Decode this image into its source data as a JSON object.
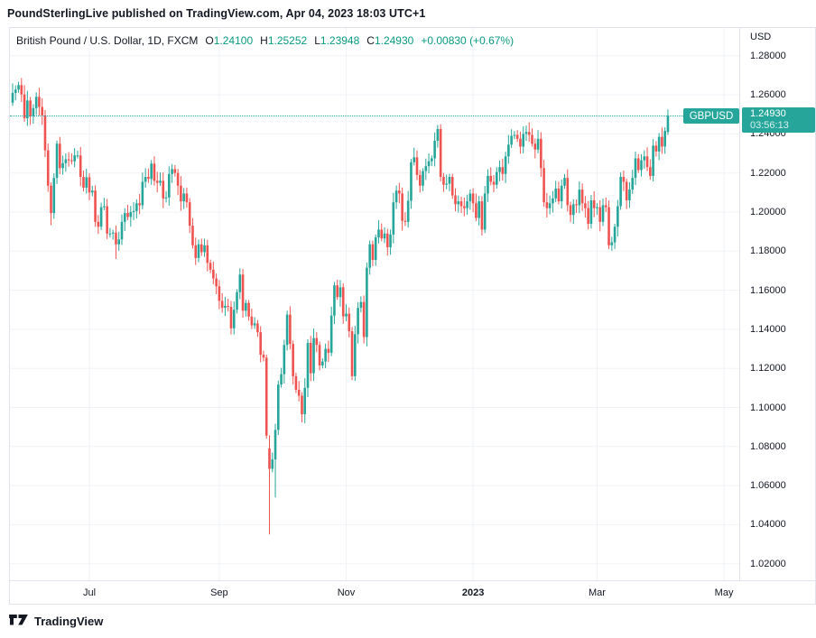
{
  "header": {
    "text": "PoundSterlingLive published on TradingView.com, Apr 04, 2023 18:03 UTC+1"
  },
  "legend": {
    "symbol_title": "British Pound / U.S. Dollar, 1D, FXCM",
    "open_label": "O",
    "open_value": "1.24100",
    "high_label": "H",
    "high_value": "1.25252",
    "low_label": "L",
    "low_value": "1.23948",
    "close_label": "C",
    "close_value": "1.24930",
    "change": "+0.00830 (+0.67%)"
  },
  "price_axis": {
    "currency": "USD",
    "badge": {
      "price": "1.24930",
      "countdown": "03:56:13"
    }
  },
  "price_line": {
    "label": "GBPUSD",
    "price": "1.24930"
  },
  "watermark": {
    "brand": "TradingView"
  },
  "colors": {
    "up": "#26a69a",
    "down": "#ef5350",
    "accent_text": "#089981",
    "badge_bg": "#26a69a",
    "grid": "#f0f2f6",
    "border": "#e0e3eb",
    "text": "#131722"
  },
  "chart_data": {
    "type": "candlestick",
    "title": "British Pound / U.S. Dollar, 1D, FXCM",
    "symbol": "GBPUSD",
    "interval": "1D",
    "exchange": "FXCM",
    "grid": true,
    "ylim": [
      1.02,
      1.28
    ],
    "y_ticks": [
      "1.28000",
      "1.26000",
      "1.24000",
      "1.22000",
      "1.20000",
      "1.18000",
      "1.16000",
      "1.14000",
      "1.12000",
      "1.10000",
      "1.08000",
      "1.06000",
      "1.04000",
      "1.02000"
    ],
    "x_ticks": [
      {
        "label": "Jul",
        "candle_index": 26,
        "bold": false
      },
      {
        "label": "Sep",
        "candle_index": 70,
        "bold": false
      },
      {
        "label": "Nov",
        "candle_index": 113,
        "bold": false
      },
      {
        "label": "2023",
        "candle_index": 156,
        "bold": true
      },
      {
        "label": "Mar",
        "candle_index": 198,
        "bold": false
      },
      {
        "label": "May",
        "candle_index": 241,
        "bold": false
      }
    ],
    "current_price": 1.2493,
    "first_open": 1.256,
    "closes": [
      1.261,
      1.2627,
      1.265,
      1.2602,
      1.248,
      1.2571,
      1.249,
      1.2532,
      1.259,
      1.2538,
      1.2495,
      1.2316,
      1.2135,
      1.1995,
      1.2175,
      1.235,
      1.2225,
      1.225,
      1.227,
      1.2265,
      1.226,
      1.229,
      1.229,
      1.218,
      1.2125,
      1.2178,
      1.21,
      1.211,
      1.195,
      1.1925,
      1.2025,
      1.203,
      1.189,
      1.189,
      1.1895,
      1.1835,
      1.186,
      1.195,
      1.1995,
      1.1975,
      1.2,
      1.2005,
      1.2045,
      1.2035,
      1.2155,
      1.218,
      1.217,
      1.2248,
      1.216,
      1.215,
      1.216,
      1.207,
      1.2075,
      1.2195,
      1.222,
      1.22,
      1.2135,
      1.2055,
      1.2095,
      1.205,
      1.193,
      1.183,
      1.1765,
      1.1835,
      1.1795,
      1.183,
      1.174,
      1.1705,
      1.166,
      1.162,
      1.1545,
      1.151,
      1.152,
      1.1515,
      1.1405,
      1.15,
      1.159,
      1.168,
      1.1495,
      1.1535,
      1.1465,
      1.142,
      1.143,
      1.1385,
      1.127,
      1.1255,
      1.0856,
      1.0686,
      1.0734,
      1.0885,
      1.1117,
      1.117,
      1.132,
      1.1475,
      1.1325,
      1.116,
      1.109,
      1.106,
      1.0965,
      1.11,
      1.133,
      1.1175,
      1.1355,
      1.132,
      1.1215,
      1.1235,
      1.13,
      1.128,
      1.147,
      1.1625,
      1.1565,
      1.1615,
      1.1466,
      1.148,
      1.139,
      1.116,
      1.1375,
      1.151,
      1.154,
      1.136,
      1.1715,
      1.1835,
      1.1755,
      1.187,
      1.191,
      1.1865,
      1.189,
      1.182,
      1.1885,
      1.205,
      1.211,
      1.2095,
      1.1955,
      1.195,
      1.2058,
      1.2255,
      1.228,
      1.219,
      1.2135,
      1.221,
      1.2235,
      1.226,
      1.2275,
      1.2365,
      1.2425,
      1.218,
      1.214,
      1.2145,
      1.218,
      1.2085,
      1.204,
      1.2055,
      1.203,
      1.202,
      1.2055,
      1.2095,
      1.2045,
      1.197,
      1.2055,
      1.191,
      1.2095,
      1.2185,
      1.2155,
      1.214,
      1.2205,
      1.223,
      1.2195,
      1.2285,
      1.2345,
      1.239,
      1.2395,
      1.2375,
      1.2335,
      1.24,
      1.241,
      1.2395,
      1.235,
      1.232,
      1.2375,
      1.2225,
      1.205,
      1.202,
      1.2045,
      1.207,
      1.212,
      1.2055,
      1.2135,
      1.2175,
      1.2035,
      1.1985,
      1.204,
      1.2035,
      1.2115,
      1.2045,
      1.202,
      1.194,
      1.206,
      1.202,
      1.2025,
      1.195,
      1.2035,
      1.2025,
      1.183,
      1.1845,
      1.1925,
      1.203,
      1.218,
      1.2155,
      1.206,
      1.2115,
      1.2175,
      1.2275,
      1.2215,
      1.2265,
      1.2285,
      1.223,
      1.2185,
      1.234,
      1.231,
      1.2385,
      1.2335,
      1.2415,
      1.2493
    ],
    "overrides": {
      "2": {
        "h": 1.2667
      },
      "13": {
        "l": 1.1933
      },
      "35": {
        "l": 1.176
      },
      "86": {
        "h": 1.127,
        "l": 1.084
      },
      "87": {
        "o": 1.079,
        "h": 1.0858,
        "l": 1.035
      },
      "89": {
        "o": 1.0734,
        "h": 1.0916,
        "l": 1.0539
      },
      "98": {
        "l": 1.0923
      },
      "144": {
        "h": 1.2446
      },
      "203": {
        "l": 1.1802
      },
      "222": {
        "o": 1.241,
        "h": 1.25252,
        "l": 1.23948,
        "c": 1.2493
      }
    }
  }
}
